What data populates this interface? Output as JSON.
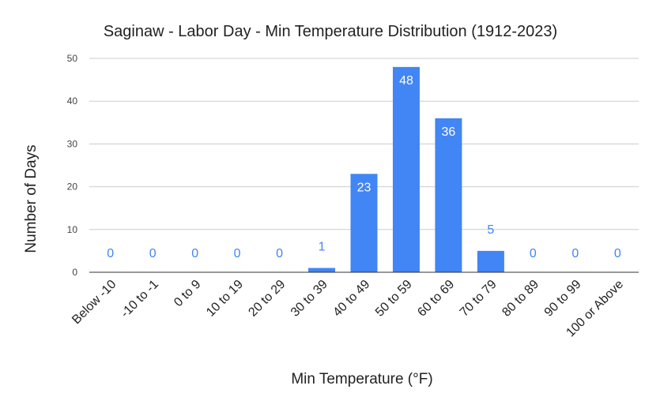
{
  "chart_data": {
    "type": "bar",
    "title": "Saginaw - Labor Day - Min Temperature Distribution (1912-2023)",
    "xlabel": "Min Temperature (°F)",
    "ylabel": "Number of Days",
    "categories": [
      "Below -10",
      "-10 to -1",
      "0 to 9",
      "10 to 19",
      "20 to 29",
      "30 to 39",
      "40 to 49",
      "50 to 59",
      "60 to 69",
      "70 to 79",
      "80 to 89",
      "90 to 99",
      "100 or Above"
    ],
    "series": [
      {
        "values": [
          0,
          0,
          0,
          0,
          0,
          1,
          23,
          48,
          36,
          5,
          0,
          0,
          0
        ]
      }
    ],
    "ylim": [
      0,
      50
    ],
    "yticks": [
      0,
      10,
      20,
      30,
      40,
      50
    ],
    "grid": true,
    "legend": "none",
    "data_labels": true,
    "colors": {
      "bar": "#4285f4",
      "label_inside": "#ffffff",
      "label_outside": "#4285f4"
    }
  }
}
